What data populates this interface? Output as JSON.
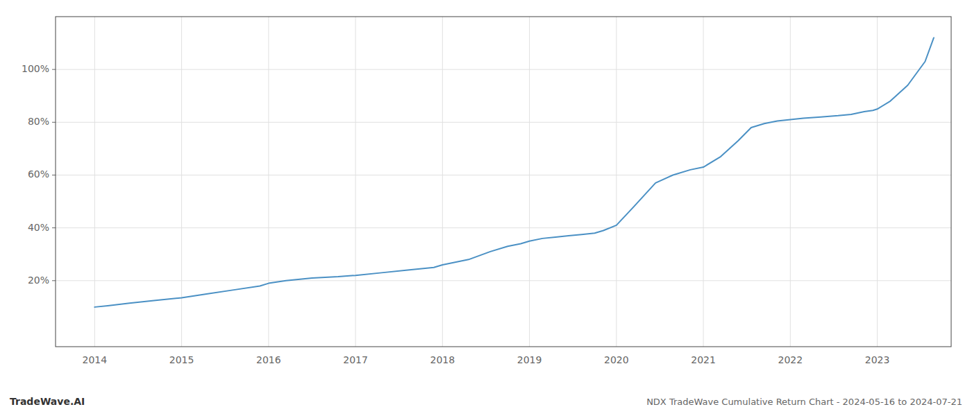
{
  "chart_data": {
    "type": "line",
    "title": "NDX TradeWave Cumulative Return Chart - 2024-05-16 to 2024-07-21",
    "annotations": [
      "TradeWave.AI"
    ],
    "color": "#4a90c4",
    "grid": true,
    "x": [
      2014.0,
      2014.15,
      2014.4,
      2014.7,
      2015.0,
      2015.3,
      2015.6,
      2015.9,
      2016.0,
      2016.2,
      2016.5,
      2016.8,
      2017.0,
      2017.3,
      2017.6,
      2017.9,
      2018.0,
      2018.3,
      2018.55,
      2018.75,
      2018.9,
      2019.0,
      2019.15,
      2019.3,
      2019.45,
      2019.6,
      2019.75,
      2019.85,
      2020.0,
      2020.2,
      2020.45,
      2020.65,
      2020.85,
      2021.0,
      2021.2,
      2021.4,
      2021.55,
      2021.7,
      2021.85,
      2022.0,
      2022.15,
      2022.35,
      2022.55,
      2022.7,
      2022.85,
      2022.95,
      2023.0,
      2023.15,
      2023.35,
      2023.55,
      2023.65
    ],
    "values": [
      10,
      10.5,
      11.5,
      12.5,
      13.5,
      15,
      16.5,
      18,
      19,
      20,
      21,
      21.5,
      22,
      23,
      24,
      25,
      26,
      28,
      31,
      33,
      34,
      35,
      36,
      36.5,
      37,
      37.5,
      38,
      39,
      41,
      48,
      57,
      60,
      62,
      63,
      67,
      73,
      78,
      79.5,
      80.5,
      81,
      81.5,
      82,
      82.5,
      83,
      84,
      84.5,
      85,
      88,
      94,
      103,
      112
    ],
    "xlim": [
      2013.55,
      2023.85
    ],
    "ylim": [
      -5,
      120
    ],
    "xticks": [
      2014,
      2015,
      2016,
      2017,
      2018,
      2019,
      2020,
      2021,
      2022,
      2023
    ],
    "yticks": [
      {
        "value": 20,
        "label": "20%"
      },
      {
        "value": 40,
        "label": "40%"
      },
      {
        "value": 60,
        "label": "60%"
      },
      {
        "value": 80,
        "label": "80%"
      },
      {
        "value": 100,
        "label": "100%"
      }
    ]
  }
}
